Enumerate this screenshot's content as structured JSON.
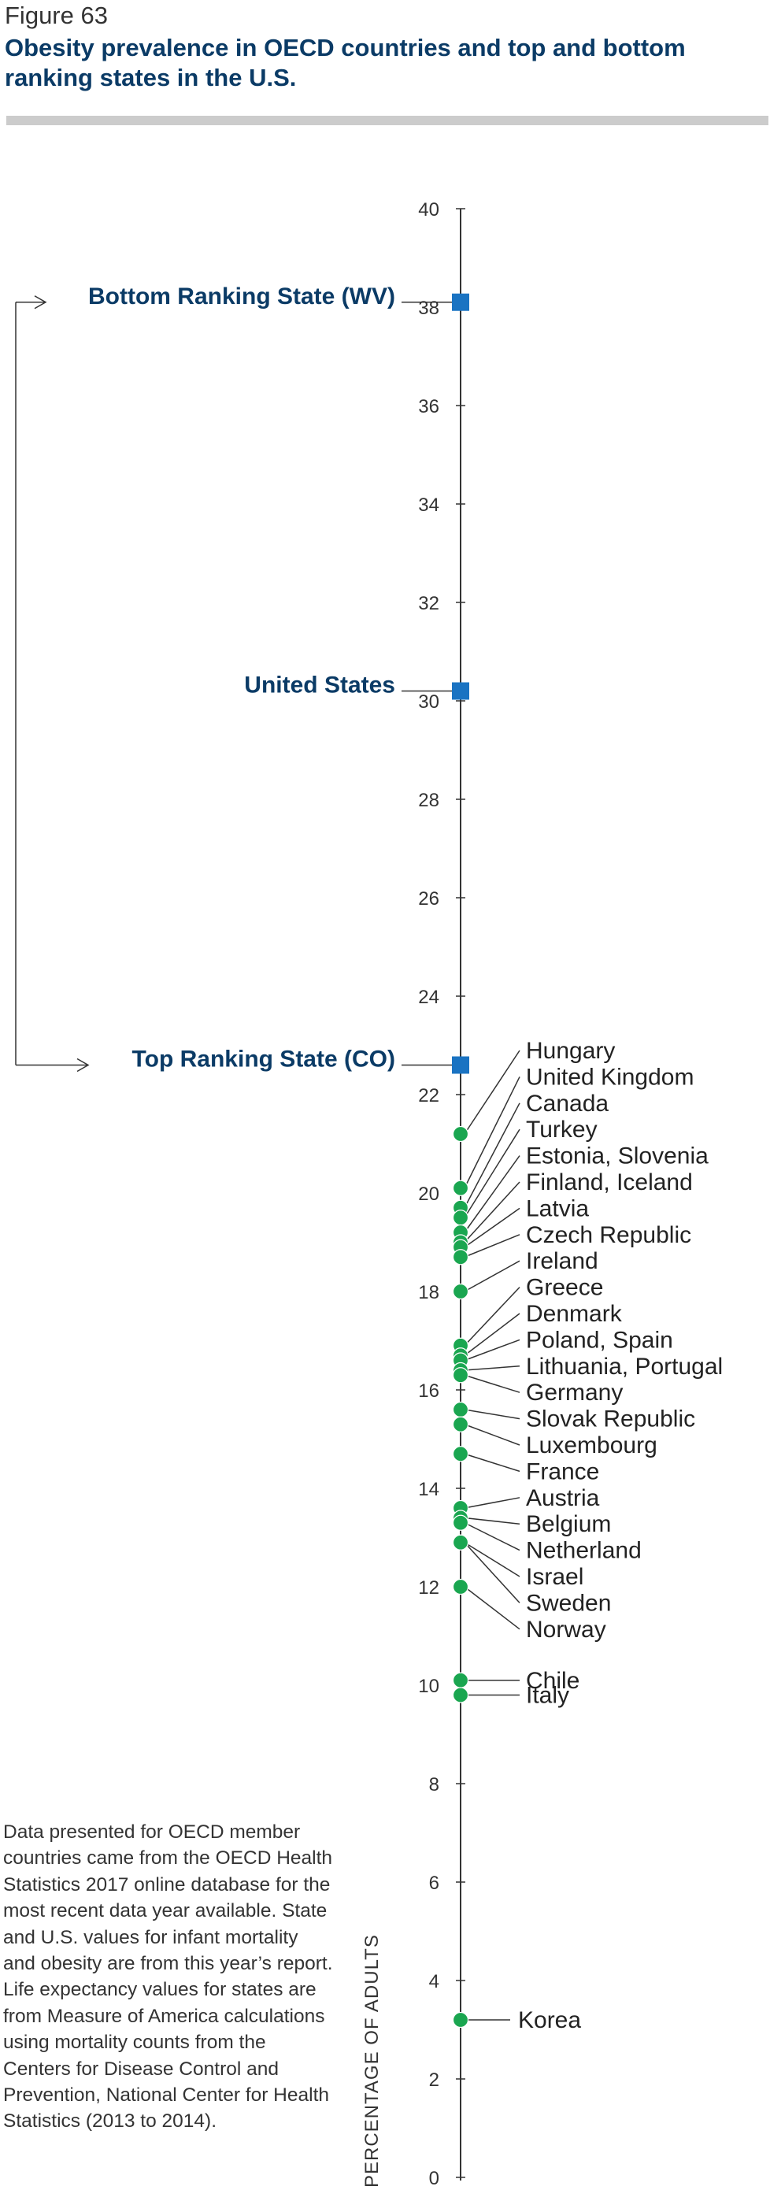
{
  "figure_label": "Figure 63",
  "figure_title": "Obesity prevalence in OECD countries and top and bottom ranking states in the U.S.",
  "note": "Data presented for OECD member countries came from the OECD Health Statistics 2017 online database for the most recent data year available. State and U.S. values for infant mortality and obesity are from this year’s report. Life expectancy values for states are from Measure of America calculations using mortality counts from the Centers for Disease Control and Prevention, National Center for Health Statistics (2013 to 2014).",
  "colors": {
    "country_marker": "#1aa650",
    "state_marker": "#1a73c2",
    "state_label": "#0b3b66",
    "title_rule": "#cccccc"
  },
  "chart_data": {
    "type": "scatter",
    "ylabel": "PERCENTAGE OF ADULTS",
    "ylim": [
      0,
      40
    ],
    "yticks": [
      0,
      2,
      4,
      6,
      8,
      10,
      12,
      14,
      16,
      18,
      20,
      22,
      24,
      26,
      28,
      30,
      32,
      34,
      36,
      38,
      40
    ],
    "grid": false,
    "states": [
      {
        "label": "Bottom Ranking State (WV)",
        "value": 38.1
      },
      {
        "label": "United States",
        "value": 30.2
      },
      {
        "label": "Top Ranking State (CO)",
        "value": 22.6
      }
    ],
    "bracket_between": [
      "Bottom Ranking State (WV)",
      "Top Ranking State (CO)"
    ],
    "countries": [
      {
        "label": "Hungary",
        "value": 21.2
      },
      {
        "label": "United Kingdom",
        "value": 20.1
      },
      {
        "label": "Canada",
        "value": 19.7
      },
      {
        "label": "Turkey",
        "value": 19.5
      },
      {
        "label": "Estonia, Slovenia",
        "value": 19.2
      },
      {
        "label": "Finland, Iceland",
        "value": 19.0
      },
      {
        "label": "Latvia",
        "value": 18.9
      },
      {
        "label": "Czech Republic",
        "value": 18.7
      },
      {
        "label": "Ireland",
        "value": 18.0
      },
      {
        "label": "Greece",
        "value": 16.9
      },
      {
        "label": "Denmark",
        "value": 16.7
      },
      {
        "label": "Poland, Spain",
        "value": 16.6
      },
      {
        "label": "Lithuania, Portugal",
        "value": 16.4
      },
      {
        "label": "Germany",
        "value": 16.3
      },
      {
        "label": "Slovak Republic",
        "value": 15.6
      },
      {
        "label": "Luxembourg",
        "value": 15.3
      },
      {
        "label": "France",
        "value": 14.7
      },
      {
        "label": "Austria",
        "value": 13.6
      },
      {
        "label": "Belgium",
        "value": 13.4
      },
      {
        "label": "Netherland",
        "value": 13.3
      },
      {
        "label": "Israel",
        "value": 12.9
      },
      {
        "label": "Sweden",
        "value": 12.9
      },
      {
        "label": "Norway",
        "value": 12.0
      },
      {
        "label": "Chile",
        "value": 10.1
      },
      {
        "label": "Italy",
        "value": 9.8
      },
      {
        "label": "Korea",
        "value": 3.2
      }
    ]
  }
}
